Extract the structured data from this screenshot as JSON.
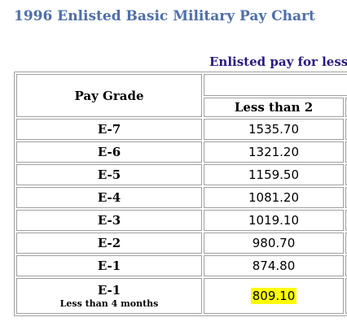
{
  "page_title": "1996 Enlisted Basic Military Pay Chart",
  "table_caption": "Enlisted pay for less",
  "table": {
    "header_grade": "Pay Grade",
    "header_pay": "Less than 2",
    "rows": [
      {
        "grade": "E-7",
        "pay": "1535.70"
      },
      {
        "grade": "E-6",
        "pay": "1321.20"
      },
      {
        "grade": "E-5",
        "pay": "1159.50"
      },
      {
        "grade": "E-4",
        "pay": "1081.20"
      },
      {
        "grade": "E-3",
        "pay": "1019.10"
      },
      {
        "grade": "E-2",
        "pay": "980.70"
      },
      {
        "grade": "E-1",
        "pay": "874.80"
      },
      {
        "grade": "E-1",
        "note": "Less than 4 months",
        "pay": "809.10",
        "highlighted": true
      }
    ]
  },
  "colors": {
    "title": "#4f6fa8",
    "caption": "#2a1a80",
    "highlight": "#ffff00",
    "border": "#a0a0a0"
  }
}
